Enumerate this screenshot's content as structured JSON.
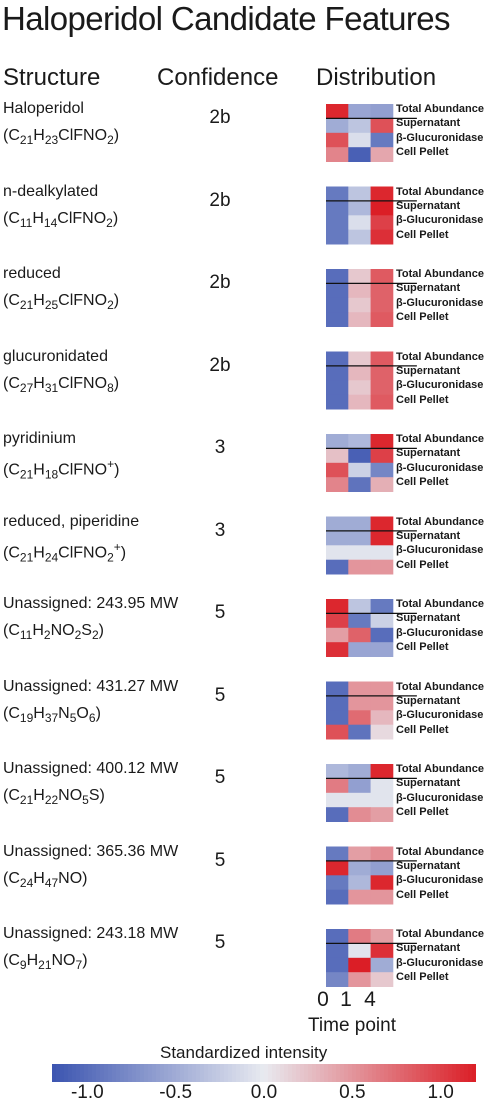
{
  "title": "Haloperidol Candidate Features",
  "headers": {
    "structure": "Structure",
    "confidence": "Confidence",
    "distribution": "Distribution"
  },
  "fractions": [
    "Total Abundance",
    "Supernatant",
    "β-Glucuronidase",
    "Cell Pellet"
  ],
  "colors": {
    "low": "#3b54b0",
    "mid": "#e8eaf0",
    "high": "#db1e26"
  },
  "chart_data": {
    "type": "heatmap",
    "xlabel": "Time point",
    "x_categories": [
      "0",
      "1",
      "4"
    ],
    "y_categories": [
      "Total Abundance",
      "Supernatant",
      "β-Glucuronidase",
      "Cell Pellet"
    ],
    "colorbar": {
      "label": "Standardized intensity",
      "range": [
        -1.2,
        1.2
      ],
      "ticks": [
        "-1.0",
        "-0.5",
        "0.0",
        "0.5",
        "1.0"
      ]
    },
    "features": [
      {
        "name": "Haloperidol",
        "formula": [
          [
            "C",
            ""
          ],
          [
            "21",
            "sub"
          ],
          [
            "H",
            ""
          ],
          [
            "23",
            "sub"
          ],
          [
            "ClFNO",
            ""
          ],
          [
            "2",
            "sub"
          ],
          [
            ")",
            ""
          ]
        ],
        "confidence": "2b",
        "values": [
          [
            1.15,
            -0.55,
            -0.6
          ],
          [
            -0.5,
            -0.3,
            0.9
          ],
          [
            0.9,
            -0.1,
            -0.9
          ],
          [
            0.6,
            -1.1,
            0.4
          ]
        ]
      },
      {
        "name": "n-dealkylated",
        "formula": [
          [
            "C",
            ""
          ],
          [
            "11",
            "sub"
          ],
          [
            "H",
            ""
          ],
          [
            "14",
            "sub"
          ],
          [
            "ClFNO",
            ""
          ],
          [
            "2",
            "sub"
          ],
          [
            ")",
            ""
          ]
        ],
        "confidence": "2b",
        "values": [
          [
            -0.9,
            -0.3,
            1.15
          ],
          [
            -0.9,
            -0.4,
            1.2
          ],
          [
            -0.9,
            -0.1,
            1.0
          ],
          [
            -0.9,
            -0.3,
            1.1
          ]
        ]
      },
      {
        "name": "reduced",
        "formula": [
          [
            "C",
            ""
          ],
          [
            "21",
            "sub"
          ],
          [
            "H",
            ""
          ],
          [
            "25",
            "sub"
          ],
          [
            "ClFNO",
            ""
          ],
          [
            "2",
            "sub"
          ],
          [
            ")",
            ""
          ]
        ],
        "confidence": "2b",
        "values": [
          [
            -1.0,
            0.2,
            0.85
          ],
          [
            -1.0,
            0.3,
            0.8
          ],
          [
            -1.0,
            0.2,
            0.8
          ],
          [
            -1.0,
            0.3,
            0.85
          ]
        ]
      },
      {
        "name": "glucuronidated",
        "formula": [
          [
            "C",
            ""
          ],
          [
            "27",
            "sub"
          ],
          [
            "H",
            ""
          ],
          [
            "31",
            "sub"
          ],
          [
            "ClFNO",
            ""
          ],
          [
            "8",
            "sub"
          ],
          [
            ")",
            ""
          ]
        ],
        "confidence": "2b",
        "values": [
          [
            -1.0,
            0.2,
            0.85
          ],
          [
            -1.0,
            0.3,
            0.8
          ],
          [
            -1.0,
            0.2,
            0.8
          ],
          [
            -1.0,
            0.3,
            0.85
          ]
        ]
      },
      {
        "name": "pyridinium",
        "formula": [
          [
            "C",
            ""
          ],
          [
            "21",
            "sub"
          ],
          [
            "H",
            ""
          ],
          [
            "18",
            "sub"
          ],
          [
            "ClFNO",
            ""
          ],
          [
            "+",
            "sup"
          ],
          [
            ")",
            ""
          ]
        ],
        "confidence": "3",
        "values": [
          [
            -0.5,
            -0.4,
            1.15
          ],
          [
            0.25,
            -1.1,
            1.0
          ],
          [
            0.9,
            -0.2,
            -0.8
          ],
          [
            0.6,
            -0.95,
            0.35
          ]
        ]
      },
      {
        "name": "reduced, piperidine",
        "formula": [
          [
            "C",
            ""
          ],
          [
            "21",
            "sub"
          ],
          [
            "H",
            ""
          ],
          [
            "24",
            "sub"
          ],
          [
            "ClFNO",
            ""
          ],
          [
            "2",
            "sub"
          ],
          [
            "+",
            "sup"
          ],
          [
            ")",
            ""
          ]
        ],
        "confidence": "3",
        "values": [
          [
            -0.5,
            -0.5,
            1.15
          ],
          [
            -0.5,
            -0.5,
            1.15
          ],
          [
            -0.05,
            -0.05,
            -0.05
          ],
          [
            -1.0,
            0.5,
            0.5
          ]
        ]
      },
      {
        "name": "Unassigned: 243.95 MW",
        "formula": [
          [
            "C",
            ""
          ],
          [
            "11",
            "sub"
          ],
          [
            "H",
            ""
          ],
          [
            "2",
            "sub"
          ],
          [
            "NO",
            ""
          ],
          [
            "2",
            "sub"
          ],
          [
            "S",
            ""
          ],
          [
            "2",
            "sub"
          ],
          [
            ")",
            ""
          ]
        ],
        "confidence": "5",
        "values": [
          [
            1.15,
            -0.3,
            -0.9
          ],
          [
            1.0,
            -0.9,
            -0.2
          ],
          [
            0.45,
            0.8,
            -1.0
          ],
          [
            1.1,
            -0.55,
            -0.55
          ]
        ]
      },
      {
        "name": "Unassigned: 431.27 MW",
        "formula": [
          [
            "C",
            ""
          ],
          [
            "19",
            "sub"
          ],
          [
            "H",
            ""
          ],
          [
            "37",
            "sub"
          ],
          [
            "N",
            ""
          ],
          [
            "5",
            "sub"
          ],
          [
            "O",
            ""
          ],
          [
            "6",
            "sub"
          ],
          [
            ")",
            ""
          ]
        ],
        "confidence": "5",
        "values": [
          [
            -1.0,
            0.5,
            0.5
          ],
          [
            -1.0,
            0.5,
            0.5
          ],
          [
            -1.0,
            0.75,
            0.3
          ],
          [
            0.9,
            -0.95,
            0.1
          ]
        ]
      },
      {
        "name": "Unassigned: 400.12 MW",
        "formula": [
          [
            "C",
            ""
          ],
          [
            "21",
            "sub"
          ],
          [
            "H",
            ""
          ],
          [
            "22",
            "sub"
          ],
          [
            "NO",
            ""
          ],
          [
            "5",
            "sub"
          ],
          [
            "S)",
            ""
          ]
        ],
        "confidence": "5",
        "values": [
          [
            -0.4,
            -0.5,
            1.15
          ],
          [
            0.65,
            -0.6,
            -0.05
          ],
          [
            -0.05,
            -0.05,
            -0.05
          ],
          [
            -1.0,
            0.55,
            0.45
          ]
        ]
      },
      {
        "name": "Unassigned: 365.36 MW",
        "formula": [
          [
            "C",
            ""
          ],
          [
            "24",
            "sub"
          ],
          [
            "H",
            ""
          ],
          [
            "47",
            "sub"
          ],
          [
            "NO)",
            ""
          ]
        ],
        "confidence": "5",
        "values": [
          [
            -0.9,
            0.45,
            0.55
          ],
          [
            1.15,
            -0.5,
            -0.6
          ],
          [
            -0.9,
            -0.4,
            1.15
          ],
          [
            -1.0,
            0.5,
            0.5
          ]
        ]
      },
      {
        "name": "Unassigned: 243.18 MW",
        "formula": [
          [
            "C",
            ""
          ],
          [
            "9",
            "sub"
          ],
          [
            "H",
            ""
          ],
          [
            "21",
            "sub"
          ],
          [
            "NO",
            ""
          ],
          [
            "7",
            "sub"
          ],
          [
            ")",
            ""
          ]
        ],
        "confidence": "5",
        "values": [
          [
            -1.0,
            0.65,
            0.45
          ],
          [
            -1.0,
            -0.05,
            1.1
          ],
          [
            -1.0,
            1.2,
            -0.5
          ],
          [
            -0.8,
            0.5,
            0.2
          ]
        ]
      }
    ]
  }
}
